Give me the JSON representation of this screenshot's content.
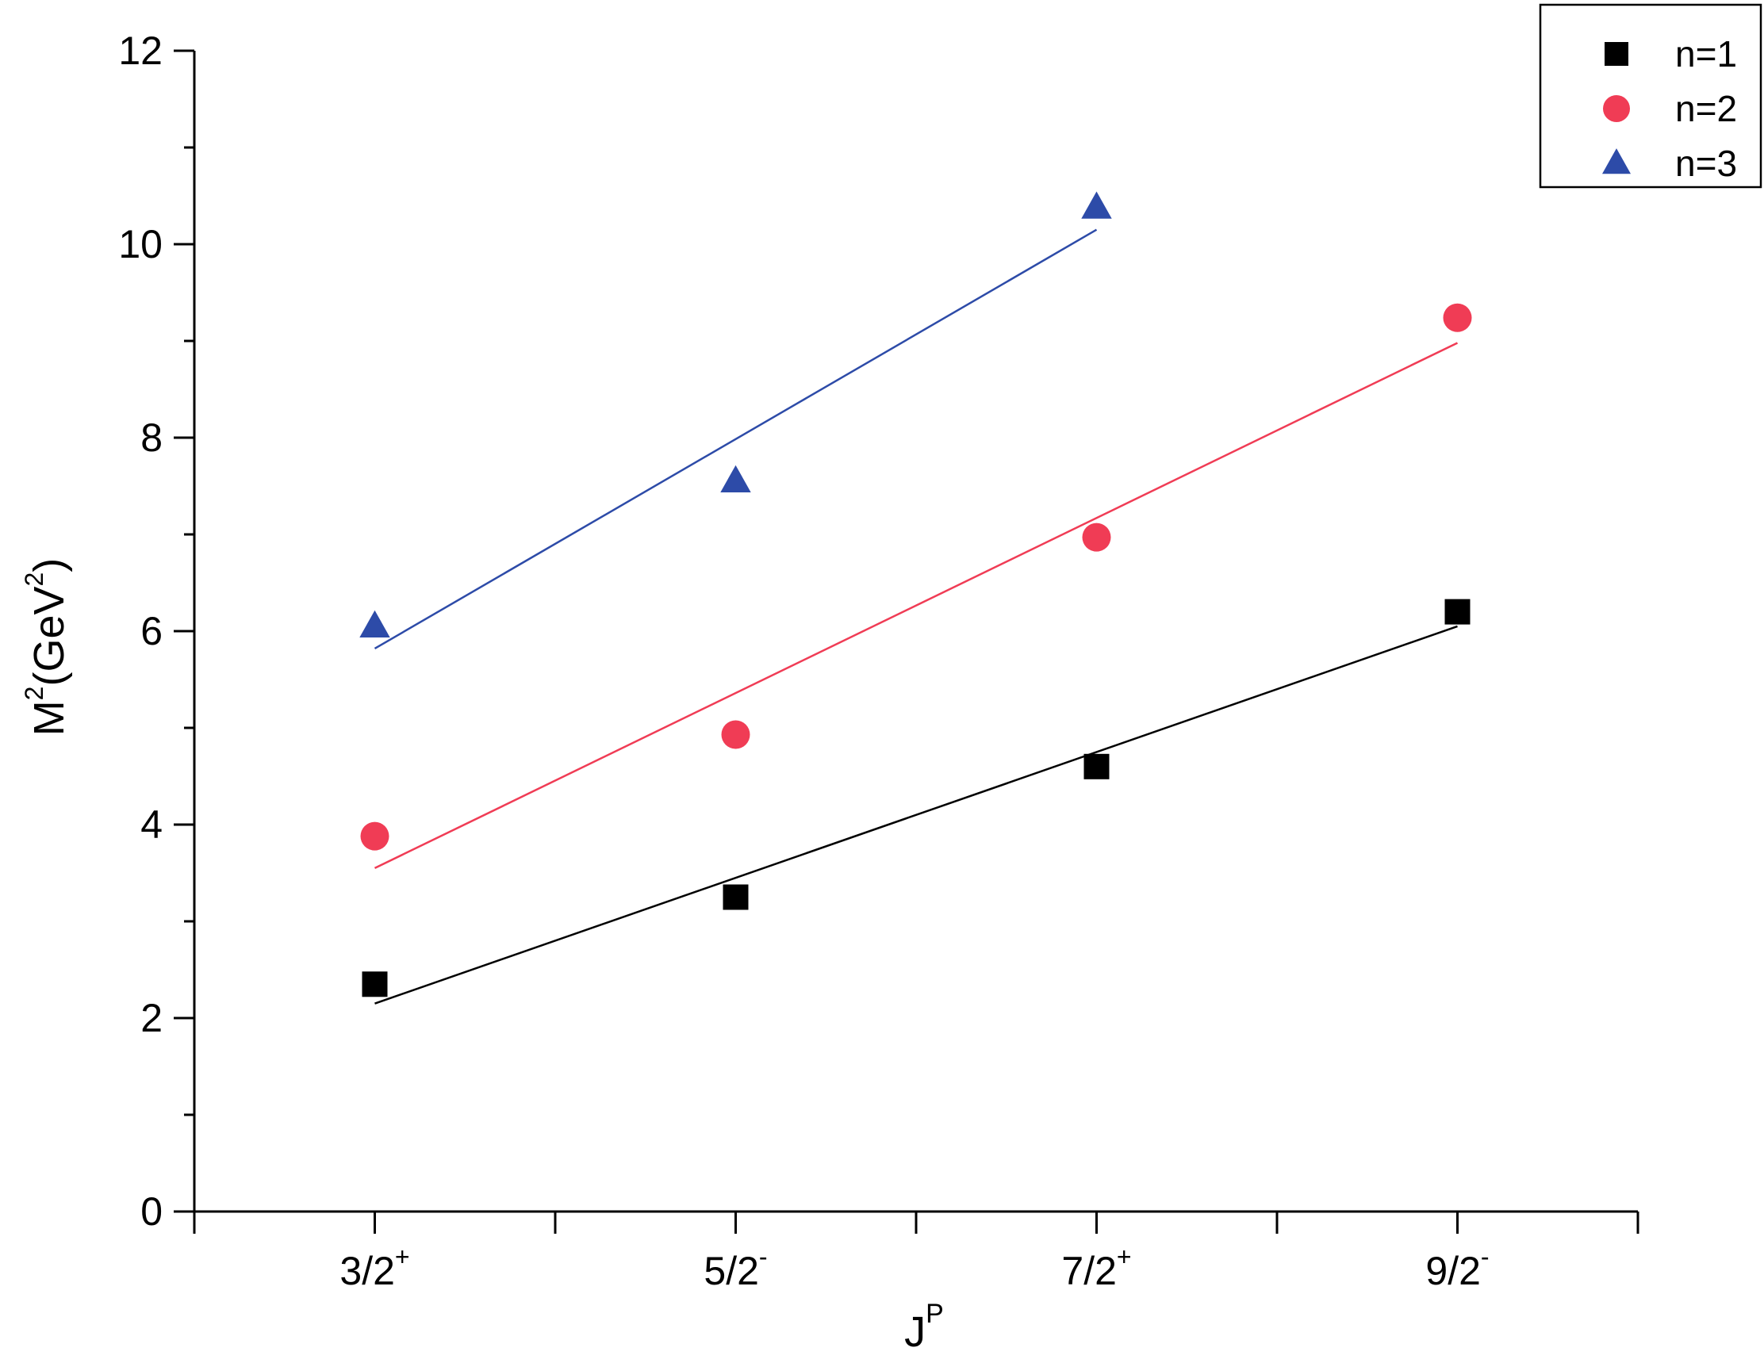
{
  "chart_data": {
    "type": "scatter",
    "title": "",
    "xlabel": {
      "base": "J",
      "sup": "P"
    },
    "ylabel": {
      "parts": [
        "M",
        "2",
        "(GeV",
        "2",
        ")"
      ]
    },
    "categories": [
      {
        "base": "3/2",
        "sup": "+"
      },
      {
        "base": "5/2",
        "sup": "-"
      },
      {
        "base": "7/2",
        "sup": "+"
      },
      {
        "base": "9/2",
        "sup": "-"
      }
    ],
    "xlim": [
      0.5,
      4.5
    ],
    "ylim": [
      0,
      12
    ],
    "yticks": [
      "0",
      "2",
      "4",
      "6",
      "8",
      "10",
      "12"
    ],
    "grid": false,
    "legend_position": "top-right",
    "series": [
      {
        "name": "n=1",
        "marker": "square",
        "color": "#000000",
        "x": [
          1,
          2,
          3,
          4
        ],
        "values": [
          2.35,
          3.25,
          4.6,
          6.2
        ],
        "fit": {
          "start": [
            1,
            2.15
          ],
          "end": [
            4,
            6.05
          ]
        }
      },
      {
        "name": "n=2",
        "marker": "circle",
        "color": "#f03c55",
        "x": [
          1,
          2,
          3,
          4
        ],
        "values": [
          3.88,
          4.93,
          6.97,
          9.24
        ],
        "fit": {
          "start": [
            1,
            3.55
          ],
          "end": [
            4,
            8.98
          ]
        }
      },
      {
        "name": "n=3",
        "marker": "triangle",
        "color": "#2d4ba8",
        "x": [
          1,
          2,
          3
        ],
        "values": [
          6.05,
          7.55,
          10.38
        ],
        "fit": {
          "start": [
            1,
            5.82
          ],
          "end": [
            3,
            10.15
          ]
        }
      }
    ]
  }
}
